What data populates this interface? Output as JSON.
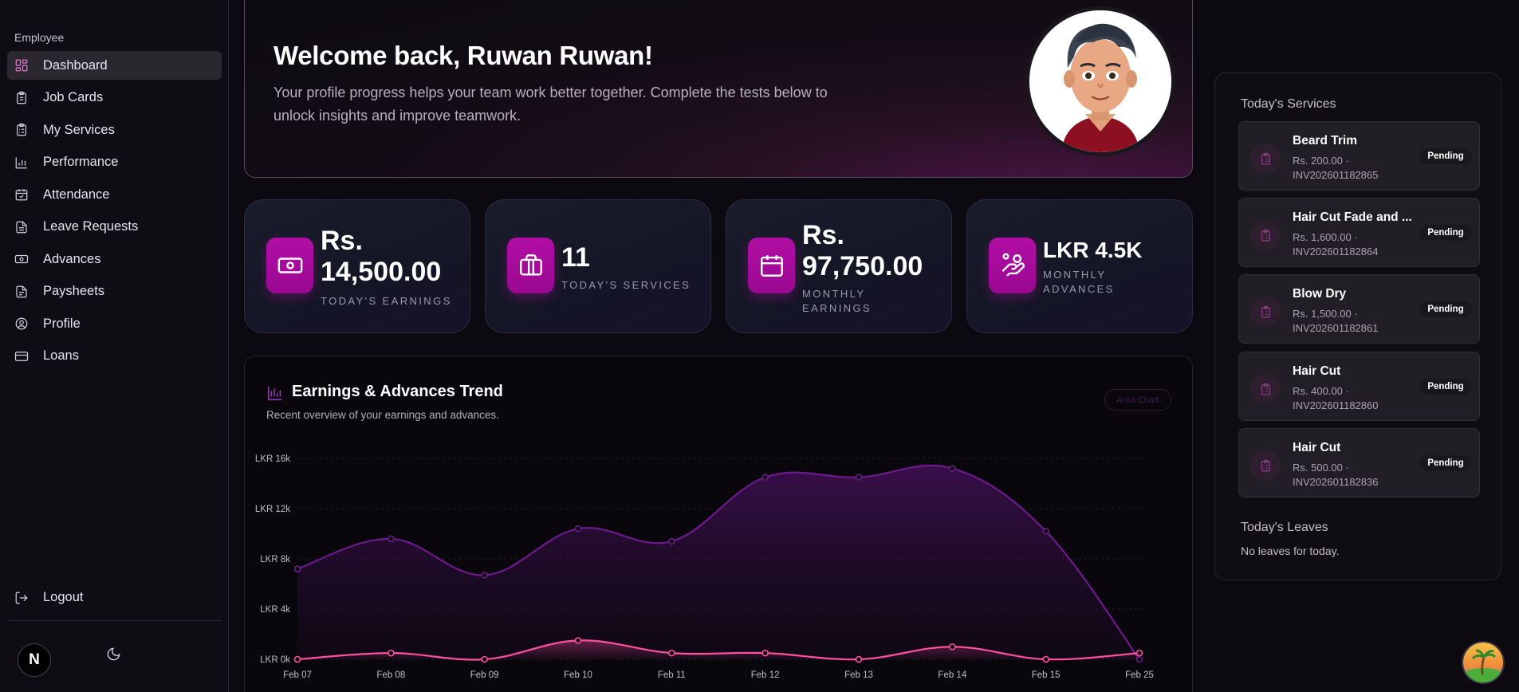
{
  "sidebar": {
    "section_label": "Employee",
    "items": [
      {
        "label": "Dashboard",
        "icon": "dashboard-icon",
        "active": true
      },
      {
        "label": "Job Cards",
        "icon": "clipboard-icon"
      },
      {
        "label": "My Services",
        "icon": "clipboard-list-icon"
      },
      {
        "label": "Performance",
        "icon": "bar-chart-icon"
      },
      {
        "label": "Attendance",
        "icon": "calendar-check-icon"
      },
      {
        "label": "Leave Requests",
        "icon": "file-text-icon"
      },
      {
        "label": "Advances",
        "icon": "banknote-icon"
      },
      {
        "label": "Paysheets",
        "icon": "file-icon"
      },
      {
        "label": "Profile",
        "icon": "user-circle-icon"
      },
      {
        "label": "Loans",
        "icon": "credit-card-icon"
      }
    ],
    "logout_label": "Logout",
    "avatar_letter": "N"
  },
  "welcome": {
    "title": "Welcome back, Ruwan Ruwan!",
    "subtitle": "Your profile progress helps your team work better together. Complete the tests below to unlock insights and improve teamwork."
  },
  "stats": [
    {
      "value_line1": "Rs.",
      "value_line2": "14,500.00",
      "label_line1": "TODAY'S EARNINGS",
      "label_line2": "",
      "icon": "money-icon"
    },
    {
      "value_line1": "11",
      "value_line2": "",
      "label_line1": "TODAY'S SERVICES",
      "label_line2": "",
      "icon": "briefcase-icon"
    },
    {
      "value_line1": "Rs.",
      "value_line2": "97,750.00",
      "label_line1": "MONTHLY",
      "label_line2": "EARNINGS",
      "icon": "calendar-icon"
    },
    {
      "value_line1": "LKR 4.5K",
      "value_line2": "",
      "label_line1": "MONTHLY",
      "label_line2": "ADVANCES",
      "icon": "hand-coins-icon"
    }
  ],
  "chart": {
    "title": "Earnings & Advances Trend",
    "subtitle": "Recent overview of your earnings and advances.",
    "type_badge": "Area Chart"
  },
  "chart_data": {
    "type": "area",
    "categories": [
      "Feb 07",
      "Feb 08",
      "Feb 09",
      "Feb 10",
      "Feb 11",
      "Feb 12",
      "Feb 13",
      "Feb 14",
      "Feb 15",
      "Feb 25"
    ],
    "y_ticks": [
      "LKR 0k",
      "LKR 4k",
      "LKR 8k",
      "LKR 12k",
      "LKR 16k"
    ],
    "ylim": [
      0,
      16000
    ],
    "series": [
      {
        "values": [
          7200,
          9600,
          6700,
          10400,
          9400,
          14500,
          14500,
          15200,
          10200,
          0
        ],
        "color": "#6d1a8c"
      },
      {
        "values": [
          0,
          500,
          0,
          1500,
          500,
          500,
          0,
          1000,
          0,
          500
        ],
        "color": "#ff4fa3"
      }
    ],
    "grid": true
  },
  "right_panel": {
    "services_heading": "Today's Services",
    "services": [
      {
        "name": "Beard Trim",
        "price": "Rs. 200.00 ·",
        "invoice": "INV202601182865",
        "status": "Pending"
      },
      {
        "name": "Hair Cut Fade and ...",
        "price": "Rs. 1,600.00 ·",
        "invoice": "INV202601182864",
        "status": "Pending"
      },
      {
        "name": "Blow Dry",
        "price": "Rs. 1,500.00 ·",
        "invoice": "INV202601182861",
        "status": "Pending"
      },
      {
        "name": "Hair Cut",
        "price": "Rs. 400.00 ·",
        "invoice": "INV202601182860",
        "status": "Pending"
      },
      {
        "name": "Hair Cut",
        "price": "Rs. 500.00 ·",
        "invoice": "INV202601182836",
        "status": "Pending"
      }
    ],
    "leaves_heading": "Today's Leaves",
    "leaves_empty": "No leaves for today."
  }
}
